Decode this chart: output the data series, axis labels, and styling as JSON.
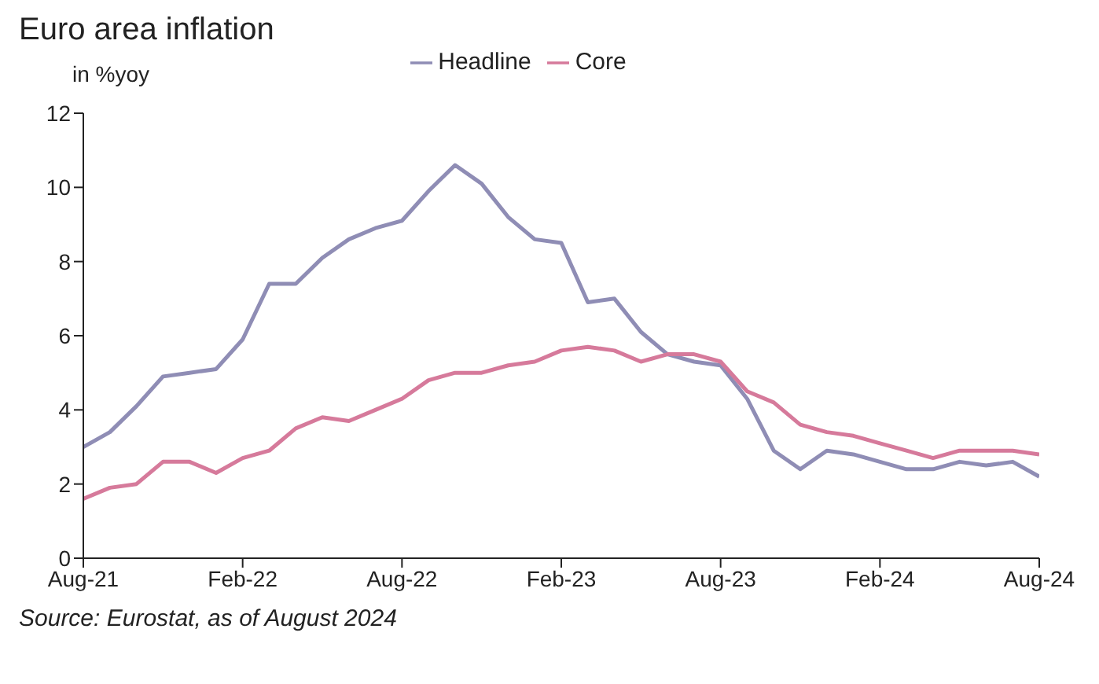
{
  "chart_data": {
    "type": "line",
    "title": "Euro area inflation",
    "ylabel": "in %yoy",
    "categories": [
      "Aug-21",
      null,
      null,
      null,
      null,
      null,
      "Feb-22",
      null,
      null,
      null,
      null,
      null,
      "Aug-22",
      null,
      null,
      null,
      null,
      null,
      "Feb-23",
      null,
      null,
      null,
      null,
      null,
      "Aug-23",
      null,
      null,
      null,
      null,
      null,
      "Feb-24",
      null,
      null,
      null,
      null,
      null,
      "Aug-24"
    ],
    "series": [
      {
        "name": "Headline",
        "color": "#8f8db5",
        "values": [
          3.0,
          3.4,
          4.1,
          4.9,
          5.0,
          5.1,
          5.9,
          7.4,
          7.4,
          8.1,
          8.6,
          8.9,
          9.1,
          9.9,
          10.6,
          10.1,
          9.2,
          8.6,
          8.5,
          6.9,
          7.0,
          6.1,
          5.5,
          5.3,
          5.2,
          4.3,
          2.9,
          2.4,
          2.9,
          2.8,
          2.6,
          2.4,
          2.4,
          2.6,
          2.5,
          2.6,
          2.2
        ]
      },
      {
        "name": "Core",
        "color": "#d67a9b",
        "values": [
          1.6,
          1.9,
          2.0,
          2.6,
          2.6,
          2.3,
          2.7,
          2.9,
          3.5,
          3.8,
          3.7,
          4.0,
          4.3,
          4.8,
          5.0,
          5.0,
          5.2,
          5.3,
          5.6,
          5.7,
          5.6,
          5.3,
          5.5,
          5.5,
          5.3,
          4.5,
          4.2,
          3.6,
          3.4,
          3.3,
          3.1,
          2.9,
          2.7,
          2.9,
          2.9,
          2.9,
          2.8
        ]
      }
    ],
    "ylim": [
      0,
      12
    ],
    "yticks": [
      0,
      2,
      4,
      6,
      8,
      10,
      12
    ],
    "grid": false,
    "legend": "top",
    "marker": "none",
    "line_style": "solid",
    "annotations": [
      "Source: Eurostat, as of August 2024"
    ]
  }
}
